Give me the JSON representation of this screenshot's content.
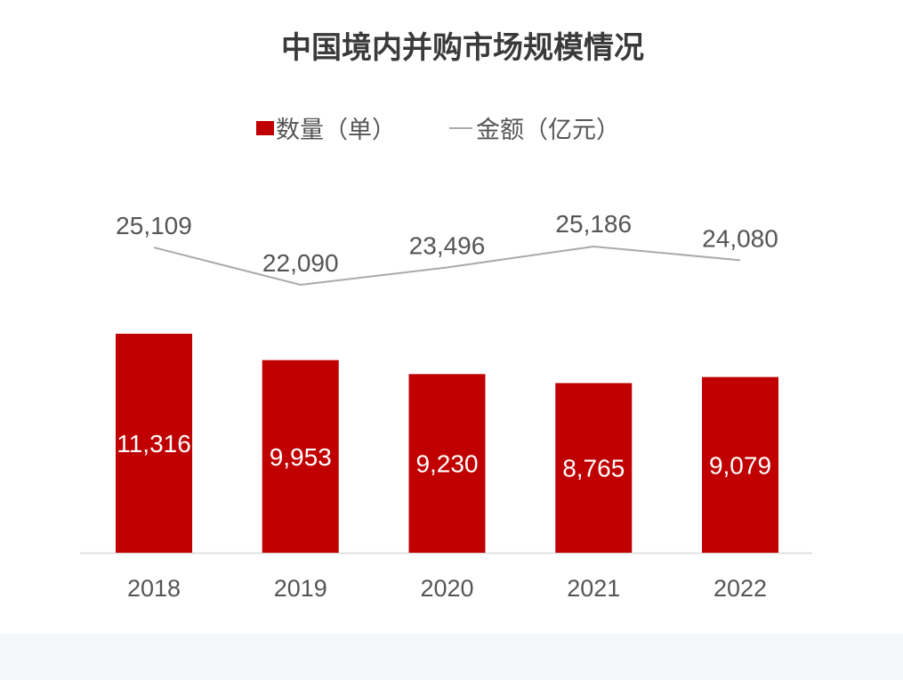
{
  "chart_data": {
    "type": "bar",
    "title": "中国境内并购市场规模情况",
    "categories": [
      "2018",
      "2019",
      "2020",
      "2021",
      "2022"
    ],
    "series": [
      {
        "name": "数量（单）",
        "type": "bar",
        "values": [
          11316,
          9953,
          9230,
          8765,
          9079
        ],
        "labels": [
          "11,316",
          "9,953",
          "9,230",
          "8,765",
          "9,079"
        ],
        "color": "#c00000"
      },
      {
        "name": "金额（亿元）",
        "type": "line",
        "values": [
          25109,
          22090,
          23496,
          25186,
          24080
        ],
        "labels": [
          "25,109",
          "22,090",
          "23,496",
          "25,186",
          "24,080"
        ],
        "color": "#aaaaaa"
      }
    ],
    "xlabel": "",
    "ylabel": "",
    "ylim": [
      0,
      14000
    ],
    "y2lim": [
      0,
      30000
    ],
    "grid": false,
    "legend": "top-center"
  }
}
